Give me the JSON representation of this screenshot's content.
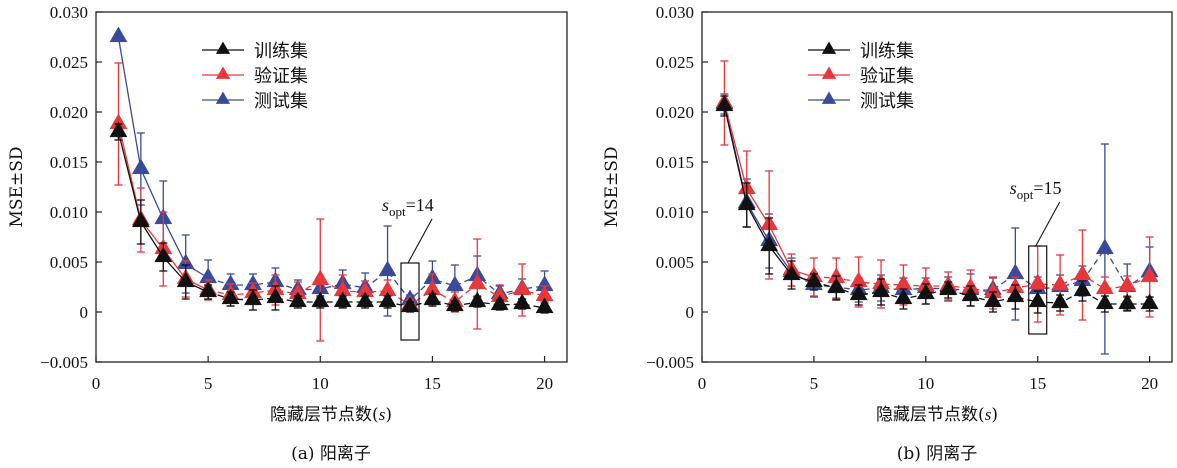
{
  "colors": {
    "train": "#111111",
    "validation": "#e8373b",
    "test": "#3a4a9a",
    "axis": "#111111"
  },
  "chart_data": [
    {
      "type": "line",
      "panel": "a",
      "caption": "(a) 阳离子",
      "xlabel": "隐藏层节点数(s)",
      "ylabel": "MSE±SD",
      "xlim": [
        0,
        21
      ],
      "ylim": [
        -0.005,
        0.03
      ],
      "xticks": [
        0,
        5,
        10,
        15,
        20
      ],
      "xtick_labels": [
        "0",
        "5",
        "10",
        "15",
        "20"
      ],
      "yticks": [
        -0.005,
        0,
        0.005,
        0.01,
        0.015,
        0.02,
        0.025,
        0.03
      ],
      "ytick_labels": [
        "−0.005",
        "0",
        "0.005",
        "0.010",
        "0.015",
        "0.020",
        "0.025",
        "0.030"
      ],
      "grid": false,
      "legend_placement": "top-center",
      "annotation": {
        "text_main": "s",
        "text_sub": "opt",
        "text_suffix": "=14",
        "x": 14,
        "box_ylim": [
          -0.0028,
          0.0049
        ]
      },
      "x": [
        1,
        2,
        3,
        4,
        5,
        6,
        7,
        8,
        9,
        10,
        11,
        12,
        13,
        14,
        15,
        16,
        17,
        18,
        19,
        20
      ],
      "series": [
        {
          "name": "训练集",
          "key": "train",
          "values": [
            0.018,
            0.009,
            0.0055,
            0.003,
            0.002,
            0.0013,
            0.0012,
            0.0014,
            0.001,
            0.001,
            0.001,
            0.001,
            0.001,
            0.0005,
            0.0012,
            0.0006,
            0.001,
            0.0007,
            0.0008,
            0.0004
          ],
          "sd": [
            0.0008,
            0.0022,
            0.0014,
            0.0017,
            0.0007,
            0.0007,
            0.001,
            0.0012,
            0.0006,
            0.0006,
            0.0006,
            0.0006,
            0.0006,
            0.0005,
            0.0006,
            0.0005,
            0.0005,
            0.0005,
            0.0005,
            0.0005
          ]
        },
        {
          "name": "验证集",
          "key": "validation",
          "values": [
            0.0188,
            0.0092,
            0.0063,
            0.0033,
            0.0022,
            0.0017,
            0.0019,
            0.0022,
            0.0018,
            0.0032,
            0.0021,
            0.002,
            0.0021,
            0.0007,
            0.0022,
            0.001,
            0.0028,
            0.0015,
            0.0022,
            0.0016
          ],
          "sd": [
            0.0061,
            0.0032,
            0.0037,
            0.0018,
            0.001,
            0.0011,
            0.001,
            0.0015,
            0.0012,
            0.0061,
            0.0016,
            0.0011,
            0.0011,
            0.0005,
            0.0016,
            0.001,
            0.0045,
            0.0012,
            0.0026,
            0.001
          ],
          "dash": true
        },
        {
          "name": "测试集",
          "key": "test",
          "values": [
            0.0275,
            0.0143,
            0.0093,
            0.0048,
            0.0034,
            0.0027,
            0.0027,
            0.003,
            0.0022,
            0.0023,
            0.0028,
            0.0024,
            0.0041,
            0.0012,
            0.0033,
            0.0026,
            0.0036,
            0.0018,
            0.0023,
            0.0026
          ],
          "sd": [
            0.0,
            0.0036,
            0.0038,
            0.0029,
            0.0018,
            0.0011,
            0.0011,
            0.0014,
            0.001,
            0.0009,
            0.0014,
            0.0015,
            0.0045,
            0.0005,
            0.0018,
            0.0021,
            0.002,
            0.0008,
            0.001,
            0.0015
          ],
          "dash": true
        }
      ]
    },
    {
      "type": "line",
      "panel": "b",
      "caption": "(b) 阴离子",
      "xlabel": "隐藏层节点数(s)",
      "ylabel": "MSE±SD",
      "xlim": [
        0,
        21
      ],
      "ylim": [
        -0.005,
        0.03
      ],
      "xticks": [
        0,
        5,
        10,
        15,
        20
      ],
      "xtick_labels": [
        "0",
        "5",
        "10",
        "15",
        "20"
      ],
      "yticks": [
        -0.005,
        0,
        0.005,
        0.01,
        0.015,
        0.02,
        0.025,
        0.03
      ],
      "ytick_labels": [
        "−0.005",
        "0",
        "0.005",
        "0.010",
        "0.015",
        "0.020",
        "0.025",
        "0.030"
      ],
      "grid": false,
      "legend_placement": "top-center",
      "annotation": {
        "text_main": "s",
        "text_sub": "opt",
        "text_suffix": "=15",
        "x": 15,
        "box_ylim": [
          -0.0022,
          0.0066
        ]
      },
      "x": [
        1,
        2,
        3,
        4,
        5,
        6,
        7,
        8,
        9,
        10,
        11,
        12,
        13,
        14,
        15,
        16,
        17,
        18,
        19,
        20
      ],
      "series": [
        {
          "name": "训练集",
          "key": "train",
          "values": [
            0.0206,
            0.0107,
            0.0066,
            0.0037,
            0.003,
            0.0024,
            0.0017,
            0.002,
            0.0013,
            0.0018,
            0.0022,
            0.0016,
            0.001,
            0.0015,
            0.001,
            0.0009,
            0.0021,
            0.0008,
            0.0008,
            0.0008
          ],
          "sd": [
            0.001,
            0.0022,
            0.0028,
            0.0014,
            0.0008,
            0.0012,
            0.001,
            0.0013,
            0.001,
            0.001,
            0.0008,
            0.001,
            0.001,
            0.0012,
            0.0011,
            0.0008,
            0.001,
            0.0008,
            0.0007,
            0.0007
          ],
          "dash": true
        },
        {
          "name": "验证集",
          "key": "validation",
          "values": [
            0.0209,
            0.0123,
            0.0087,
            0.0042,
            0.0035,
            0.0034,
            0.003,
            0.0028,
            0.0027,
            0.0026,
            0.0026,
            0.0024,
            0.0019,
            0.0024,
            0.0028,
            0.0027,
            0.0037,
            0.0023,
            0.0026,
            0.0035
          ],
          "sd": [
            0.0042,
            0.0038,
            0.0054,
            0.0016,
            0.0019,
            0.002,
            0.0025,
            0.0024,
            0.002,
            0.0018,
            0.0014,
            0.0018,
            0.0016,
            0.0011,
            0.0038,
            0.003,
            0.0045,
            0.0012,
            0.001,
            0.004
          ],
          "dash": true
        },
        {
          "name": "测试集",
          "key": "test",
          "values": [
            0.0208,
            0.0109,
            0.0071,
            0.004,
            0.0027,
            0.0025,
            0.0022,
            0.0024,
            0.0022,
            0.0024,
            0.0023,
            0.0022,
            0.0022,
            0.0038,
            0.0023,
            0.0025,
            0.0031,
            0.0063,
            0.0025,
            0.004
          ],
          "sd": [
            0.001,
            0.0024,
            0.0027,
            0.0014,
            0.0012,
            0.0012,
            0.0012,
            0.0013,
            0.0012,
            0.001,
            0.0012,
            0.0016,
            0.0012,
            0.0046,
            0.0012,
            0.0012,
            0.0015,
            0.0105,
            0.0023,
            0.0025
          ],
          "dash": true
        }
      ]
    }
  ]
}
